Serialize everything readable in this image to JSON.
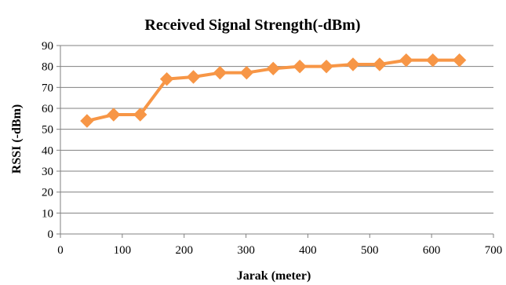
{
  "chart_data": {
    "type": "line",
    "title": "Received Signal Strength(-dBm)",
    "xlabel": "Jarak (meter)",
    "ylabel": "RSSI (-dBm)",
    "xlim": [
      0,
      700
    ],
    "ylim": [
      0,
      90
    ],
    "x_ticks": [
      "0",
      "100",
      "200",
      "300",
      "400",
      "500",
      "600",
      "700"
    ],
    "y_ticks": [
      "0",
      "10",
      "20",
      "30",
      "40",
      "50",
      "60",
      "70",
      "80",
      "90"
    ],
    "grid": "horizontal",
    "legend": "none",
    "series": [
      {
        "marker": "diamond",
        "color": "#F79646",
        "points": [
          {
            "x": 43,
            "y": 54
          },
          {
            "x": 86,
            "y": 57
          },
          {
            "x": 129,
            "y": 57
          },
          {
            "x": 172,
            "y": 74
          },
          {
            "x": 215,
            "y": 75
          },
          {
            "x": 258,
            "y": 77
          },
          {
            "x": 301,
            "y": 77
          },
          {
            "x": 344,
            "y": 79
          },
          {
            "x": 387,
            "y": 80
          },
          {
            "x": 430,
            "y": 80
          },
          {
            "x": 473,
            "y": 81
          },
          {
            "x": 516,
            "y": 81
          },
          {
            "x": 559,
            "y": 83
          },
          {
            "x": 602,
            "y": 83
          },
          {
            "x": 645,
            "y": 83
          }
        ]
      }
    ]
  }
}
